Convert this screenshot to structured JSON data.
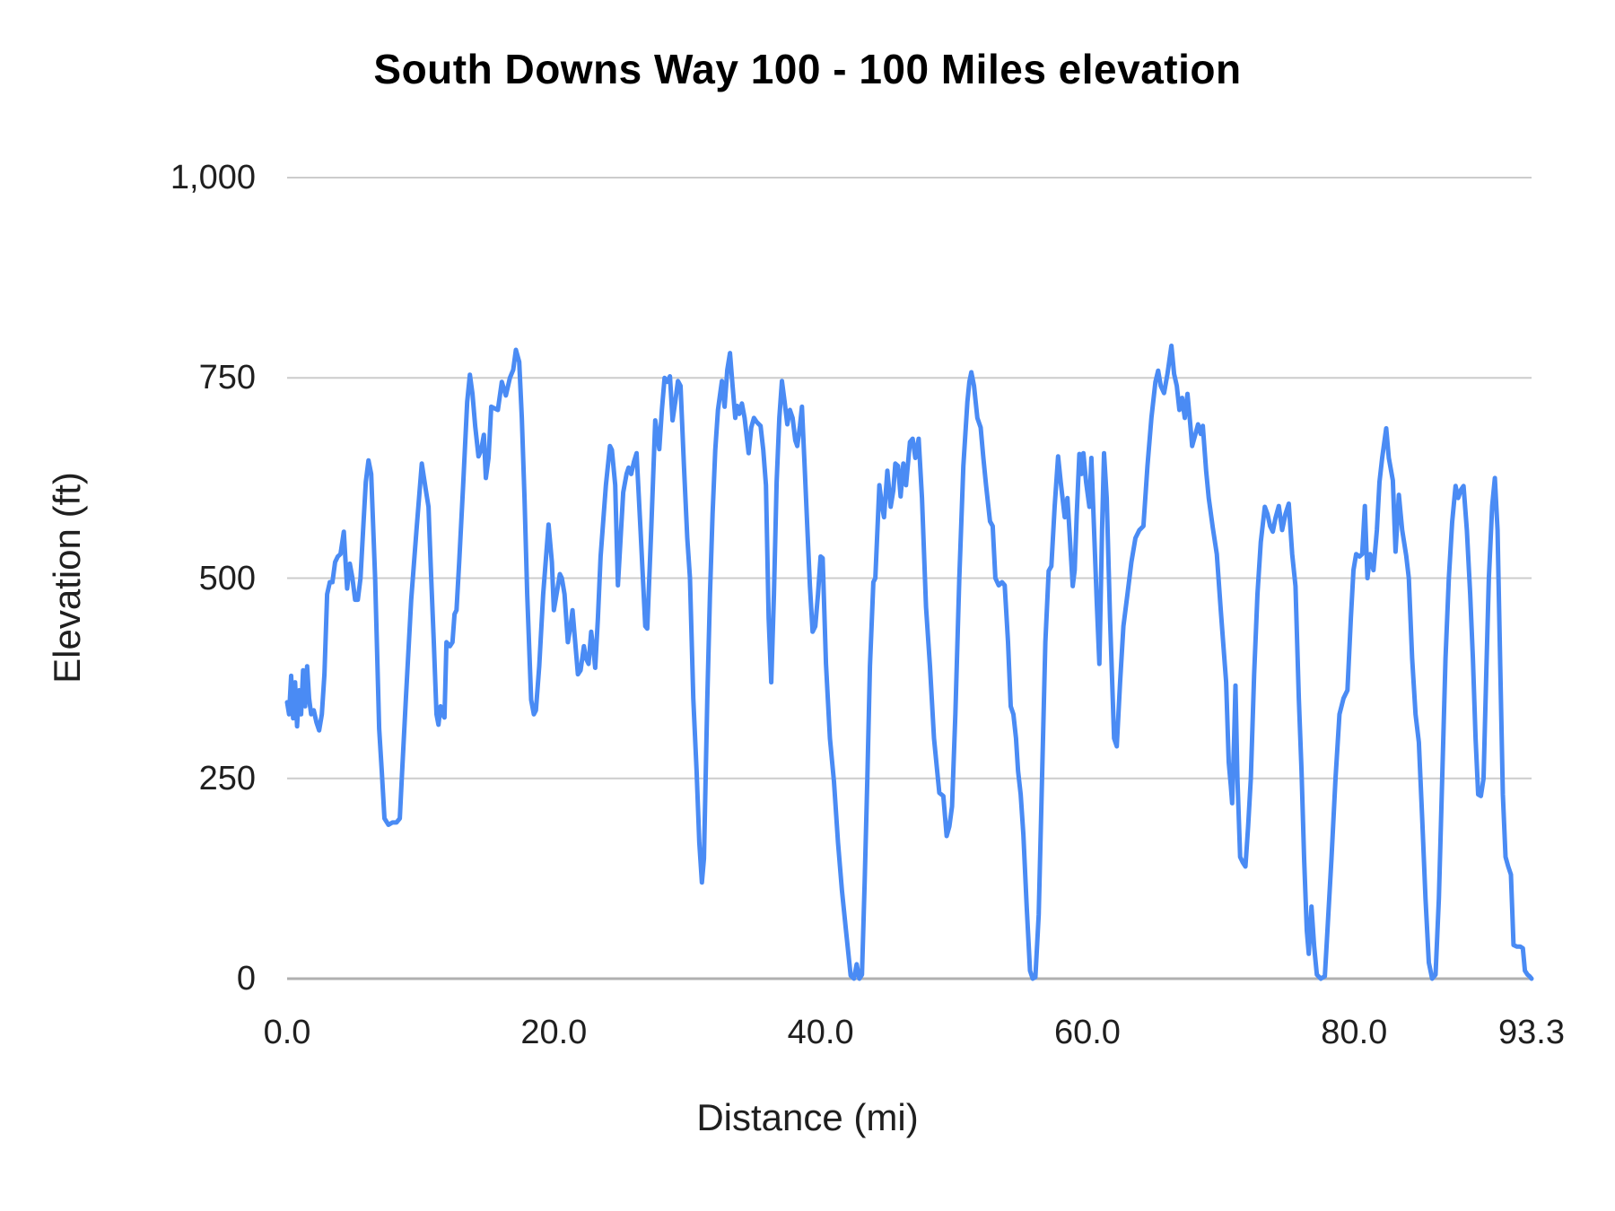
{
  "chart_data": {
    "type": "line",
    "title": "South Downs Way 100 - 100 Miles elevation",
    "xlabel": "Distance (mi)",
    "ylabel": "Elevation (ft)",
    "xlim": [
      0,
      93.3
    ],
    "ylim": [
      0,
      1000
    ],
    "grid": "horizontal-only",
    "legend": "none",
    "line_color": "#4a8bf4",
    "gridline_color": "#cccccc",
    "axis_line_color": "#b0b0b0",
    "yticks": [
      {
        "value": 0,
        "label": "0"
      },
      {
        "value": 250,
        "label": "250"
      },
      {
        "value": 500,
        "label": "500"
      },
      {
        "value": 750,
        "label": "750"
      },
      {
        "value": 1000,
        "label": "1,000"
      }
    ],
    "xticks": [
      {
        "value": 0,
        "label": "0.0"
      },
      {
        "value": 20,
        "label": "20.0"
      },
      {
        "value": 40,
        "label": "40.0"
      },
      {
        "value": 60,
        "label": "60.0"
      },
      {
        "value": 80,
        "label": "80.0"
      },
      {
        "value": 93.3,
        "label": "93.3"
      }
    ],
    "series": [
      {
        "name": "elevation",
        "x": [
          0.0,
          0.15,
          0.3,
          0.45,
          0.6,
          0.75,
          0.9,
          1.05,
          1.2,
          1.35,
          1.5,
          1.65,
          1.8,
          2.0,
          2.2,
          2.4,
          2.6,
          2.8,
          3.0,
          3.2,
          3.4,
          3.6,
          3.8,
          4.0,
          4.25,
          4.5,
          4.7,
          4.9,
          5.1,
          5.3,
          5.5,
          5.7,
          5.9,
          6.1,
          6.3,
          6.6,
          6.9,
          7.1,
          7.3,
          7.6,
          7.9,
          8.2,
          8.45,
          8.6,
          8.9,
          9.3,
          9.7,
          10.1,
          10.4,
          10.6,
          10.8,
          11.0,
          11.2,
          11.35,
          11.5,
          11.65,
          11.8,
          11.95,
          12.2,
          12.4,
          12.55,
          12.7,
          12.9,
          13.2,
          13.5,
          13.7,
          13.9,
          14.1,
          14.35,
          14.55,
          14.75,
          14.9,
          15.1,
          15.3,
          15.55,
          15.8,
          16.1,
          16.4,
          16.7,
          16.95,
          17.15,
          17.4,
          17.6,
          17.8,
          18.0,
          18.3,
          18.5,
          18.65,
          18.9,
          19.2,
          19.6,
          19.85,
          20.0,
          20.2,
          20.45,
          20.6,
          20.8,
          21.05,
          21.25,
          21.4,
          21.6,
          21.8,
          22.0,
          22.25,
          22.4,
          22.6,
          22.8,
          23.0,
          23.1,
          23.3,
          23.5,
          23.9,
          24.2,
          24.35,
          24.6,
          24.8,
          25.0,
          25.2,
          25.45,
          25.6,
          25.8,
          26.0,
          26.2,
          26.5,
          26.85,
          27.0,
          27.3,
          27.6,
          27.75,
          27.9,
          28.1,
          28.3,
          28.5,
          28.7,
          28.9,
          29.1,
          29.3,
          29.5,
          29.75,
          30.0,
          30.2,
          30.45,
          30.7,
          30.9,
          31.1,
          31.25,
          31.5,
          31.7,
          31.9,
          32.1,
          32.3,
          32.6,
          32.8,
          33.0,
          33.2,
          33.4,
          33.6,
          33.75,
          33.9,
          34.1,
          34.3,
          34.6,
          34.8,
          35.0,
          35.2,
          35.5,
          35.7,
          35.9,
          36.1,
          36.3,
          36.5,
          36.7,
          36.9,
          37.1,
          37.3,
          37.5,
          37.7,
          37.9,
          38.1,
          38.25,
          38.45,
          38.6,
          38.8,
          39.0,
          39.2,
          39.4,
          39.6,
          39.8,
          40.0,
          40.15,
          40.4,
          40.7,
          41.0,
          41.3,
          41.6,
          41.9,
          42.25,
          42.5,
          42.7,
          42.9,
          43.1,
          43.3,
          43.5,
          43.7,
          43.95,
          44.1,
          44.4,
          44.6,
          44.75,
          45.0,
          45.25,
          45.45,
          45.6,
          45.8,
          46.0,
          46.2,
          46.4,
          46.7,
          46.9,
          47.1,
          47.35,
          47.6,
          47.9,
          48.2,
          48.5,
          48.9,
          49.2,
          49.45,
          49.65,
          49.85,
          50.1,
          50.4,
          50.7,
          51.0,
          51.15,
          51.3,
          51.5,
          51.75,
          52.0,
          52.2,
          52.4,
          52.7,
          52.9,
          53.1,
          53.35,
          53.6,
          53.8,
          54.05,
          54.25,
          54.45,
          54.65,
          54.8,
          55.0,
          55.2,
          55.45,
          55.7,
          55.9,
          56.1,
          56.35,
          56.6,
          56.85,
          57.1,
          57.3,
          57.55,
          57.8,
          58.0,
          58.3,
          58.5,
          58.65,
          58.9,
          59.05,
          59.2,
          59.4,
          59.55,
          59.7,
          59.9,
          60.15,
          60.3,
          60.5,
          60.7,
          60.9,
          61.1,
          61.25,
          61.45,
          61.7,
          62.0,
          62.2,
          62.45,
          62.7,
          63.0,
          63.3,
          63.6,
          63.9,
          64.2,
          64.5,
          64.8,
          65.1,
          65.3,
          65.5,
          65.75,
          66.0,
          66.3,
          66.5,
          66.7,
          66.9,
          67.1,
          67.3,
          67.5,
          67.7,
          67.85,
          68.1,
          68.3,
          68.5,
          68.65,
          68.9,
          69.1,
          69.4,
          69.7,
          70.0,
          70.2,
          70.4,
          70.6,
          70.75,
          70.85,
          71.0,
          71.1,
          71.25,
          71.45,
          71.65,
          71.85,
          72.05,
          72.25,
          72.5,
          72.75,
          73.0,
          73.3,
          73.5,
          73.7,
          73.9,
          74.1,
          74.35,
          74.6,
          74.85,
          75.1,
          75.35,
          75.6,
          75.85,
          76.05,
          76.25,
          76.45,
          76.6,
          76.8,
          77.0,
          77.2,
          77.5,
          77.8,
          78.0,
          78.3,
          78.6,
          78.9,
          79.2,
          79.5,
          79.75,
          79.95,
          80.15,
          80.4,
          80.6,
          80.8,
          81.0,
          81.2,
          81.45,
          81.7,
          81.9,
          82.1,
          82.4,
          82.6,
          82.9,
          83.1,
          83.35,
          83.6,
          83.9,
          84.1,
          84.35,
          84.6,
          84.85,
          85.1,
          85.35,
          85.6,
          85.85,
          86.1,
          86.35,
          86.6,
          86.85,
          87.1,
          87.35,
          87.6,
          87.8,
          88.0,
          88.2,
          88.45,
          88.7,
          88.9,
          89.1,
          89.3,
          89.5,
          89.7,
          89.9,
          90.1,
          90.35,
          90.55,
          90.75,
          90.95,
          91.15,
          91.35,
          91.55,
          91.75,
          91.95,
          92.2,
          92.45,
          92.65,
          92.8,
          93.0,
          93.15,
          93.3
        ],
        "y": [
          345,
          330,
          378,
          325,
          370,
          315,
          360,
          330,
          385,
          340,
          390,
          350,
          330,
          335,
          320,
          310,
          330,
          380,
          480,
          495,
          495,
          520,
          527,
          530,
          558,
          487,
          518,
          500,
          473,
          473,
          500,
          560,
          620,
          647,
          630,
          500,
          312,
          259,
          200,
          192,
          195,
          195,
          200,
          250,
          348,
          473,
          560,
          643,
          610,
          589,
          500,
          420,
          330,
          317,
          340,
          330,
          326,
          420,
          415,
          420,
          455,
          460,
          520,
          616,
          720,
          754,
          730,
          690,
          652,
          660,
          679,
          625,
          650,
          714,
          712,
          710,
          745,
          728,
          750,
          760,
          785,
          770,
          700,
          600,
          480,
          348,
          330,
          335,
          390,
          480,
          567,
          520,
          460,
          480,
          505,
          500,
          480,
          420,
          440,
          460,
          420,
          380,
          385,
          415,
          400,
          393,
          433,
          405,
          388,
          450,
          527,
          616,
          665,
          660,
          616,
          491,
          550,
          607,
          630,
          638,
          630,
          645,
          656,
          560,
          440,
          437,
          560,
          697,
          680,
          661,
          710,
          750,
          745,
          752,
          697,
          720,
          746,
          740,
          640,
          550,
          500,
          350,
          259,
          170,
          120,
          150,
          348,
          480,
          580,
          660,
          710,
          746,
          714,
          760,
          781,
          740,
          700,
          715,
          705,
          718,
          700,
          656,
          688,
          700,
          695,
          690,
          660,
          616,
          450,
          370,
          480,
          620,
          700,
          746,
          720,
          692,
          710,
          700,
          672,
          665,
          690,
          714,
          640,
          563,
          490,
          433,
          440,
          480,
          527,
          525,
          393,
          300,
          246,
          170,
          110,
          60,
          4,
          0,
          18,
          0,
          5,
          120,
          250,
          390,
          495,
          500,
          616,
          590,
          576,
          634,
          589,
          610,
          643,
          640,
          602,
          643,
          616,
          670,
          674,
          650,
          674,
          600,
          464,
          390,
          300,
          232,
          228,
          178,
          190,
          215,
          330,
          500,
          640,
          720,
          745,
          757,
          740,
          700,
          688,
          650,
          616,
          571,
          565,
          500,
          491,
          495,
          491,
          420,
          340,
          330,
          300,
          259,
          230,
          180,
          90,
          10,
          0,
          2,
          80,
          250,
          420,
          509,
          515,
          590,
          652,
          620,
          576,
          600,
          560,
          490,
          510,
          580,
          655,
          630,
          656,
          620,
          589,
          650,
          560,
          470,
          393,
          560,
          656,
          600,
          450,
          300,
          290,
          370,
          440,
          480,
          520,
          550,
          560,
          565,
          640,
          700,
          745,
          759,
          740,
          731,
          755,
          790,
          755,
          740,
          710,
          725,
          700,
          730,
          695,
          665,
          680,
          692,
          680,
          690,
          634,
          600,
          563,
          530,
          460,
          415,
          370,
          270,
          241,
          219,
          300,
          366,
          250,
          152,
          145,
          140,
          190,
          250,
          380,
          480,
          545,
          589,
          580,
          565,
          558,
          575,
          590,
          560,
          580,
          593,
          530,
          490,
          350,
          260,
          150,
          60,
          31,
          90,
          40,
          5,
          0,
          3,
          60,
          150,
          250,
          330,
          350,
          360,
          450,
          510,
          530,
          527,
          530,
          590,
          500,
          530,
          510,
          560,
          620,
          650,
          687,
          650,
          622,
          533,
          604,
          560,
          528,
          500,
          400,
          330,
          295,
          200,
          100,
          20,
          0,
          5,
          100,
          250,
          400,
          500,
          570,
          615,
          600,
          610,
          615,
          560,
          480,
          400,
          300,
          230,
          228,
          250,
          380,
          500,
          590,
          625,
          560,
          390,
          230,
          152,
          140,
          130,
          42,
          40,
          40,
          38,
          10,
          5,
          3,
          0
        ]
      }
    ]
  }
}
